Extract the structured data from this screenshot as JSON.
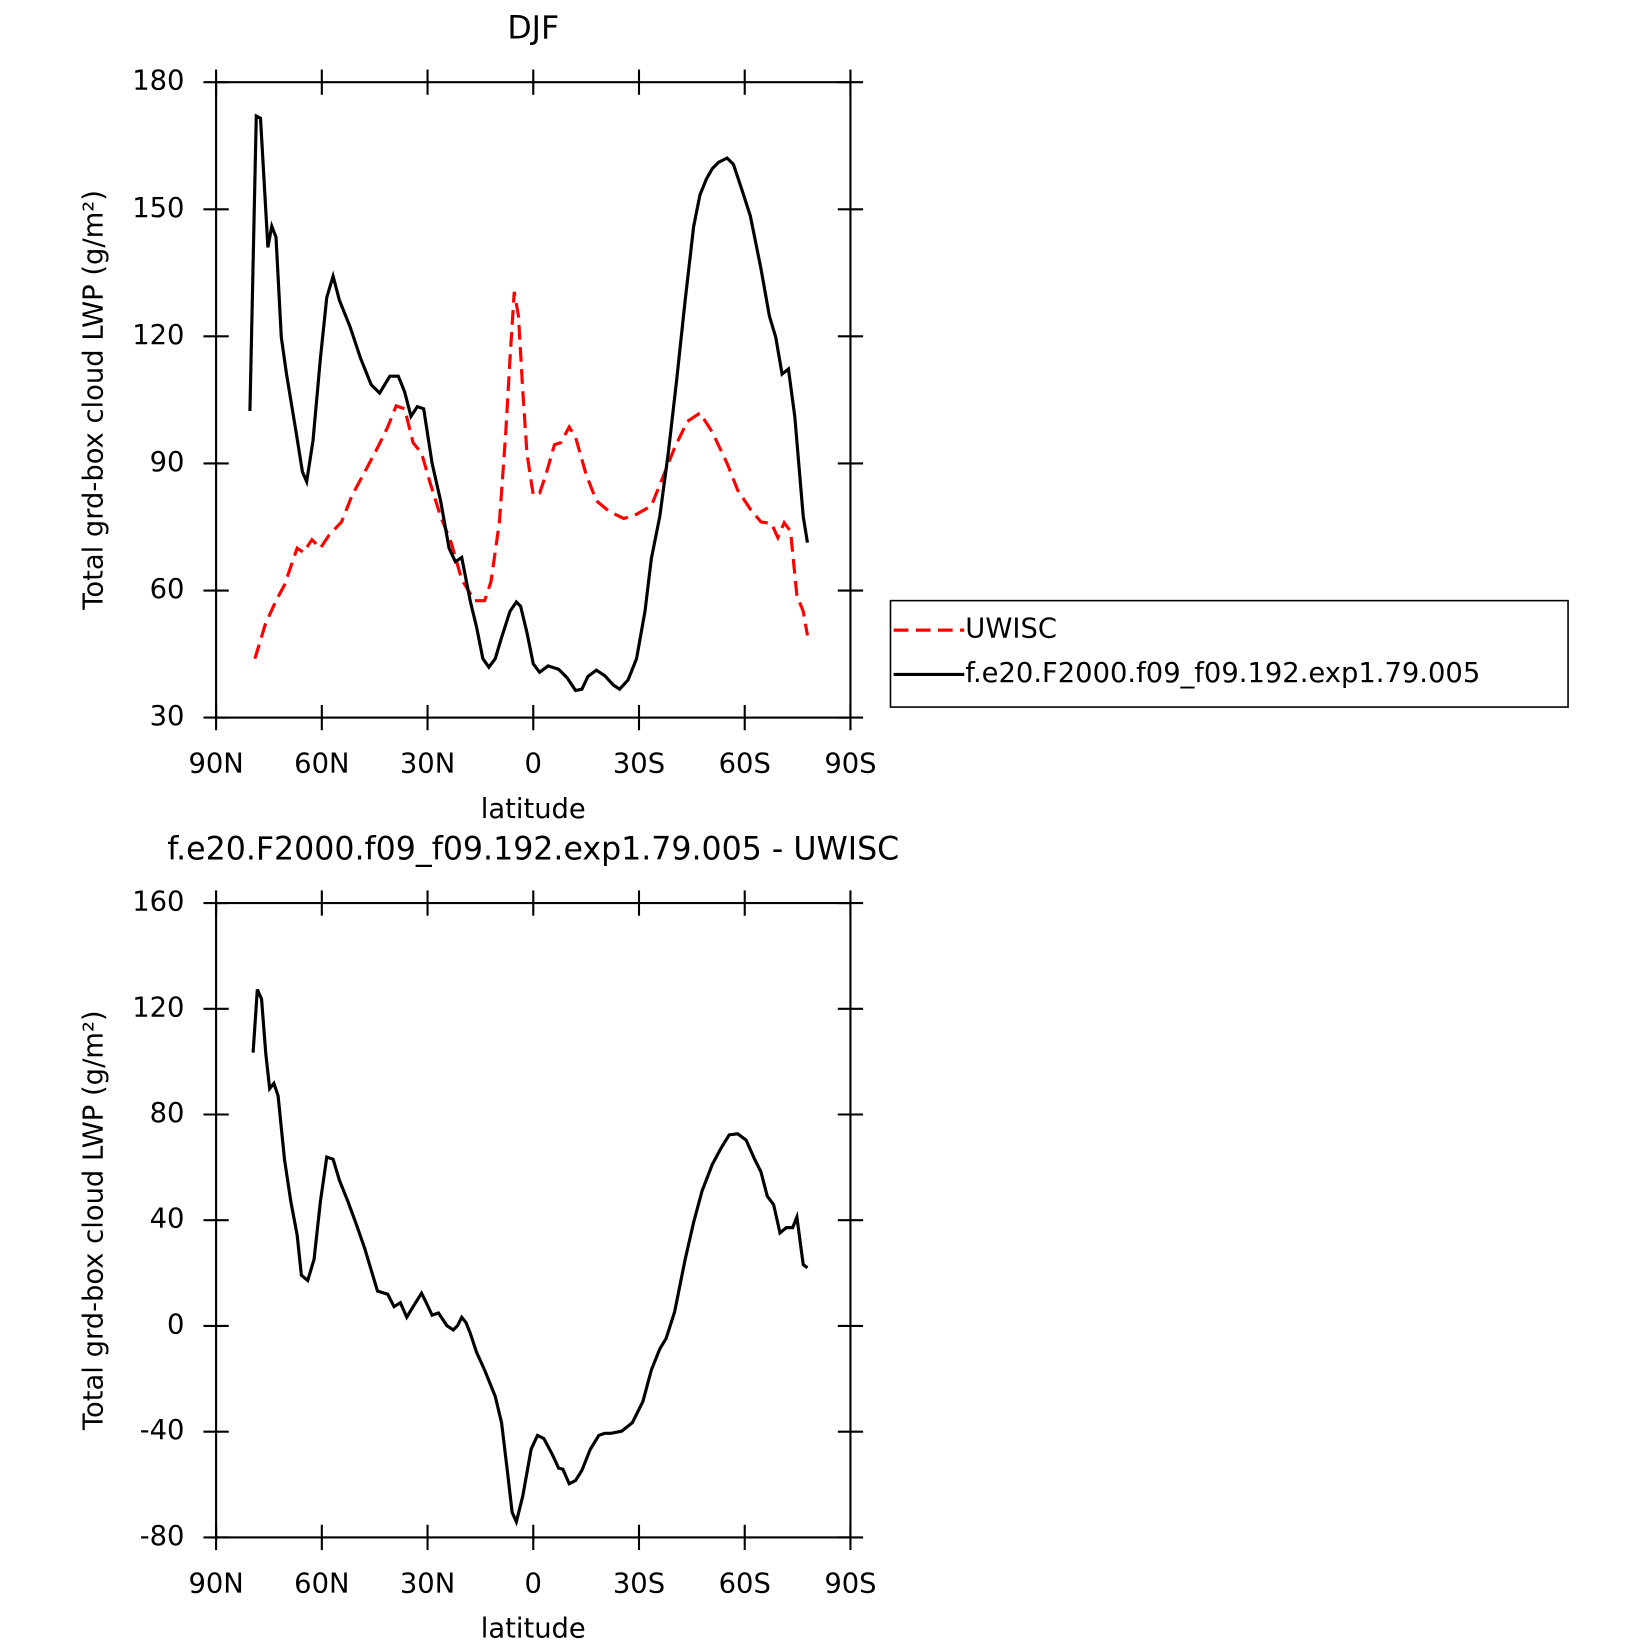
{
  "chart_data": [
    {
      "type": "line",
      "title": "DJF",
      "xlabel": "latitude",
      "ylabel": "Total grd-box cloud LWP (g/m²)",
      "xlim": [
        90,
        -90
      ],
      "xticks": [
        {
          "value": 90,
          "label": "90N"
        },
        {
          "value": 60,
          "label": "60N"
        },
        {
          "value": 30,
          "label": "30N"
        },
        0,
        {
          "value": -30,
          "label": "30S"
        },
        {
          "value": -60,
          "label": "60S"
        },
        {
          "value": -90,
          "label": "90S"
        }
      ],
      "ylim": [
        30,
        180
      ],
      "yticks": [
        30,
        60,
        90,
        120,
        150,
        180
      ],
      "legend": "right",
      "series": [
        {
          "name": "UWISC",
          "color": "#ff0000",
          "dash": true,
          "x": [
            79,
            76,
            73,
            70.6,
            67,
            65.2,
            62.8,
            60.4,
            58,
            54.4,
            51.4,
            47.8,
            44.2,
            41.3,
            38.9,
            36.5,
            34.1,
            31.7,
            29.3,
            26.3,
            23.3,
            20.3,
            16.7,
            13.8,
            12,
            9.6,
            7.8,
            6.6,
            5.4,
            4.2,
            3,
            1.8,
            0,
            -1.8,
            -3.6,
            -6,
            -7.8,
            -10.2,
            -12,
            -15,
            -17.9,
            -21.5,
            -25.7,
            -29.3,
            -33.5,
            -36.5,
            -40.1,
            -43.7,
            -47.3,
            -50.8,
            -55,
            -58,
            -61.6,
            -64.6,
            -67.6,
            -69.4,
            -71.2,
            -73,
            -74.8,
            -76.6,
            -77.8
          ],
          "values": [
            43.9,
            52.1,
            57.6,
            61.3,
            70,
            69,
            72,
            70,
            73,
            76.2,
            82.5,
            88,
            93.7,
            98.6,
            103.6,
            102.9,
            94.9,
            92.4,
            85.5,
            77.5,
            71.3,
            62.6,
            57.6,
            57.6,
            62.1,
            76.2,
            97.4,
            114.8,
            130.5,
            124.8,
            107.4,
            92.4,
            82.5,
            83,
            87.4,
            94.4,
            94.9,
            98.6,
            96.2,
            87.4,
            81.2,
            78.7,
            77,
            78,
            80,
            86.2,
            93.7,
            99.9,
            101.9,
            97.4,
            90,
            83.7,
            79.2,
            76.2,
            75.8,
            72.5,
            76,
            74,
            58.8,
            55.1,
            49.4
          ]
        },
        {
          "name": "f.e20.F2000.f09_f09.192.exp1.79.005",
          "color": "#000000",
          "dash": false,
          "x": [
            80.4,
            78.6,
            77.4,
            75.3,
            74.2,
            73,
            71.5,
            70,
            67.3,
            65.5,
            64.3,
            62.5,
            60.4,
            58.6,
            56.8,
            55,
            52,
            49,
            46,
            43.6,
            40.7,
            38.3,
            36.5,
            34.7,
            32.9,
            31.1,
            28.7,
            26.3,
            23.9,
            22.1,
            20.3,
            17.9,
            16.1,
            14.3,
            12.6,
            10.8,
            9,
            6.6,
            4.8,
            3.6,
            1.8,
            0,
            -1.8,
            -4.2,
            -7.2,
            -9.6,
            -12,
            -13.8,
            -15.5,
            -17.9,
            -20.3,
            -22.7,
            -24.5,
            -26.9,
            -29.3,
            -31.7,
            -33.5,
            -35.9,
            -38.3,
            -40.7,
            -43.1,
            -45.5,
            -47.3,
            -49.1,
            -50.8,
            -52.6,
            -55,
            -56.8,
            -59.2,
            -61.6,
            -64.6,
            -67,
            -68.8,
            -70.6,
            -72.4,
            -74.2,
            -76.6,
            -77.8
          ],
          "values": [
            102.4,
            172,
            171.5,
            141,
            146,
            143.4,
            119.8,
            111,
            97.4,
            88,
            85.7,
            95.4,
            114.8,
            129.2,
            134.2,
            128.5,
            122.3,
            114.8,
            108.6,
            106.6,
            110.6,
            110.6,
            106.9,
            101.1,
            103.4,
            102.9,
            90,
            81.2,
            70,
            66.8,
            67.8,
            57.6,
            51.4,
            43.9,
            41.9,
            43.9,
            48.9,
            55.1,
            57.3,
            56.3,
            50.1,
            42.7,
            40.7,
            42.2,
            41.4,
            39.4,
            36.4,
            36.7,
            39.7,
            41.2,
            39.9,
            37.7,
            36.7,
            38.9,
            43.9,
            55.1,
            67.5,
            77.5,
            92.4,
            109.8,
            128.5,
            145.9,
            153.4,
            157.1,
            159.6,
            161.1,
            162.1,
            160.6,
            154.6,
            148.4,
            136,
            124.8,
            119.8,
            111.1,
            112.3,
            101.1,
            77.5,
            71.3
          ]
        }
      ]
    },
    {
      "type": "line",
      "title": "f.e20.F2000.f09_f09.192.exp1.79.005 - UWISC",
      "xlabel": "latitude",
      "ylabel": "Total grd-box cloud LWP (g/m²)",
      "xlim": [
        90,
        -90
      ],
      "xticks": [
        {
          "value": 90,
          "label": "90N"
        },
        {
          "value": 60,
          "label": "60N"
        },
        {
          "value": 30,
          "label": "30N"
        },
        0,
        {
          "value": -30,
          "label": "30S"
        },
        {
          "value": -60,
          "label": "60S"
        },
        {
          "value": -90,
          "label": "90S"
        }
      ],
      "ylim": [
        -80,
        160
      ],
      "yticks": [
        -80,
        -40,
        0,
        40,
        80,
        120,
        160
      ],
      "series": [
        {
          "color": "#000000",
          "dash": false,
          "x": [
            79.5,
            78.3,
            77.1,
            75.9,
            74.8,
            73.6,
            72.4,
            70.6,
            68.8,
            67,
            65.8,
            64,
            62.2,
            60.4,
            58.6,
            56.8,
            55,
            52.6,
            50.2,
            47.8,
            46,
            44.2,
            41.3,
            39.5,
            37.7,
            35.9,
            34.1,
            31.7,
            30.5,
            28.7,
            26.9,
            24.5,
            22.7,
            21.5,
            20.3,
            19.1,
            17.9,
            16.1,
            13.8,
            10.8,
            9,
            7.2,
            6,
            4.8,
            3,
            0.6,
            -1.2,
            -3,
            -5.4,
            -7.2,
            -8.4,
            -10.2,
            -12,
            -13.8,
            -16.2,
            -18.6,
            -20.3,
            -22.1,
            -25.1,
            -28.1,
            -31.1,
            -33.5,
            -35.9,
            -37.7,
            -40.1,
            -43.1,
            -45.5,
            -47.9,
            -50.8,
            -53.2,
            -55.6,
            -58,
            -60.4,
            -62.8,
            -64.6,
            -66.4,
            -68.2,
            -70,
            -71.8,
            -73.6,
            -74.8,
            -76.6,
            -77.8
          ],
          "values": [
            103.4,
            127.3,
            123.7,
            103,
            89.8,
            91.8,
            87,
            63.1,
            47.1,
            34.4,
            19.2,
            17.2,
            25.2,
            47.1,
            63.9,
            63.1,
            55.1,
            47.1,
            38.4,
            29.2,
            21.2,
            13.2,
            12,
            7.3,
            8.8,
            3.3,
            7.3,
            12.4,
            9.2,
            4.1,
            4.9,
            0.1,
            -1.5,
            0.1,
            3.3,
            1.3,
            -2.7,
            -9.9,
            -16.7,
            -26.6,
            -36.6,
            -56.6,
            -70.5,
            -74.1,
            -64.5,
            -46.6,
            -41.4,
            -42.6,
            -48.6,
            -53.8,
            -54.2,
            -59.7,
            -58.5,
            -54.6,
            -46.6,
            -41.4,
            -40.6,
            -40.6,
            -39.8,
            -36.6,
            -28.6,
            -16.7,
            -8.7,
            -4.7,
            5.3,
            25.2,
            39.2,
            51.1,
            61.1,
            67.1,
            72.3,
            72.7,
            70.3,
            63.1,
            58.3,
            49.1,
            45.9,
            35.2,
            37.2,
            37.2,
            41.2,
            23.2,
            22
          ]
        }
      ]
    }
  ]
}
